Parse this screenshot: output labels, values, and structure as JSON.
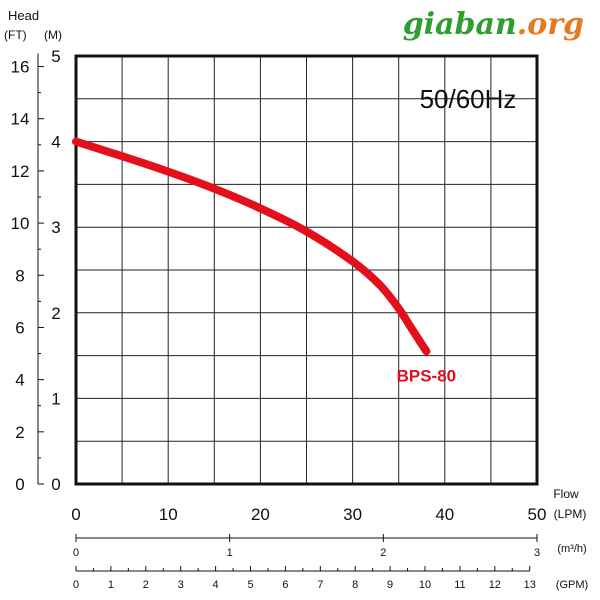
{
  "logo": {
    "main": "giaban",
    "suffix": ".org"
  },
  "chart_data": {
    "type": "line",
    "title": "50/60Hz",
    "series": [
      {
        "name": "BPS-80",
        "color": "#e3101c",
        "x": [
          0,
          5,
          10,
          15,
          20,
          25,
          30,
          33,
          35,
          36.5,
          38
        ],
        "y": [
          4.0,
          3.83,
          3.65,
          3.45,
          3.22,
          2.95,
          2.6,
          2.32,
          2.05,
          1.8,
          1.55
        ]
      }
    ],
    "head": {
      "label": "Head",
      "ft_unit": "(FT)",
      "m_unit": "(M)",
      "m_ticks": [
        "0",
        "1",
        "2",
        "3",
        "4",
        "5"
      ],
      "m_max": 5,
      "ft_ticks": [
        "0",
        "2",
        "4",
        "6",
        "8",
        "10",
        "12",
        "14",
        "16"
      ]
    },
    "flow": {
      "label": "Flow",
      "lpm_unit": "(LPM)",
      "lpm_max": 50,
      "lpm_ticks": [
        "0",
        "10",
        "20",
        "30",
        "40",
        "50"
      ],
      "m3h_unit": "(m³/h)",
      "m3h_ticks": [
        "0",
        "1",
        "2",
        "3"
      ],
      "gpm_unit": "(GPM)",
      "gpm_ticks": [
        "0",
        "1",
        "2",
        "3",
        "4",
        "5",
        "6",
        "7",
        "8",
        "9",
        "10",
        "11",
        "12",
        "13"
      ]
    },
    "grid": true
  }
}
